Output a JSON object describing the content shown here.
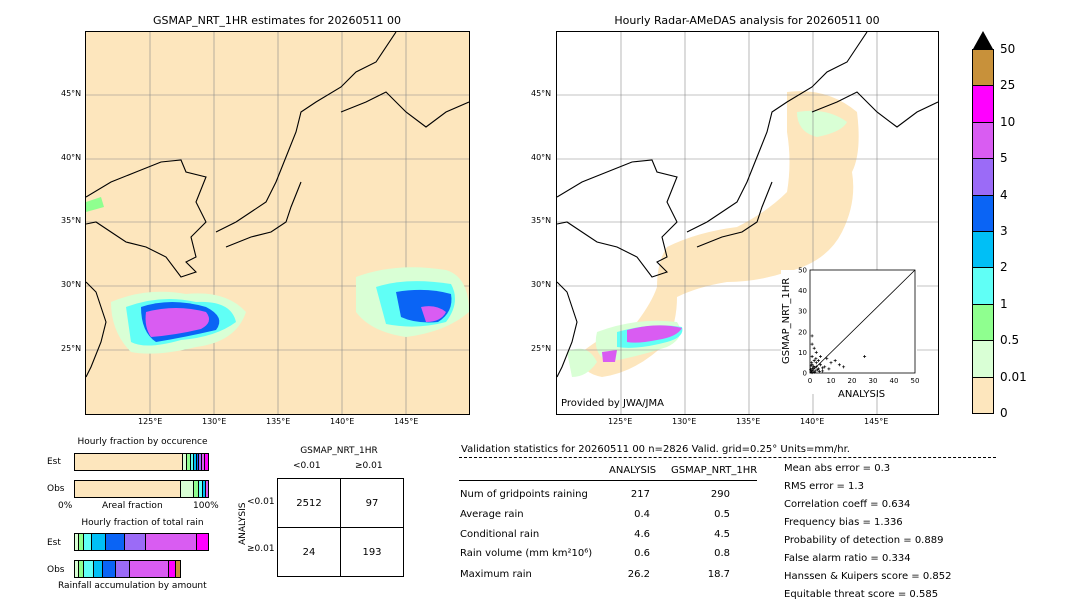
{
  "left_title": "GSMAP_NRT_1HR estimates for 20260511 00",
  "right_title": "Hourly Radar-AMeDAS analysis for 20260511 00",
  "lat_labels": [
    "45°N",
    "40°N",
    "35°N",
    "30°N",
    "25°N"
  ],
  "lon_labels": [
    "125°E",
    "130°E",
    "135°E",
    "140°E",
    "145°E"
  ],
  "provided_by": "Provided by JWA/JMA",
  "colorbar": {
    "labels": [
      "50",
      "25",
      "10",
      "5",
      "4",
      "3",
      "2",
      "1",
      "0.5",
      "0.01",
      "0"
    ],
    "colors": [
      "#c8913a",
      "#ff00ff",
      "#d95cf2",
      "#9b6bf7",
      "#0a64f5",
      "#00bff6",
      "#60fff6",
      "#8fff8f",
      "#d9ffd5",
      "#fde6bd"
    ]
  },
  "scatter": {
    "ylabel": "GSMAP_NRT_1HR",
    "xlabel": "ANALYSIS",
    "ticks": [
      "0",
      "10",
      "20",
      "30",
      "40",
      "50"
    ]
  },
  "fraction": {
    "occurrence_title": "Hourly fraction by occurence",
    "total_title": "Hourly fraction of total rain",
    "est": "Est",
    "obs": "Obs",
    "axis_left": "0%",
    "axis_mid": "Areal fraction",
    "axis_right": "100%",
    "footer": "Rainfall accumulation by amount"
  },
  "contingency": {
    "title": "GSMAP_NRT_1HR",
    "col_lt": "<0.01",
    "col_ge": "≥0.01",
    "row_axis": "ANALYSIS",
    "row_lt": "<0.01",
    "row_ge": "≥0.01",
    "cells": [
      "2512",
      "97",
      "24",
      "193"
    ]
  },
  "validation": {
    "header": "Validation statistics for 20260511 00  n=2826 Valid. grid=0.25° Units=mm/hr.",
    "col_analysis": "ANALYSIS",
    "col_gsmap": "GSMAP_NRT_1HR",
    "rows": [
      {
        "label": "Num of gridpoints raining",
        "analysis": "217",
        "gsmap": "290"
      },
      {
        "label": "Average rain",
        "analysis": "0.4",
        "gsmap": "0.5"
      },
      {
        "label": "Conditional rain",
        "analysis": "4.6",
        "gsmap": "4.5"
      },
      {
        "label": "Rain volume (mm km²10⁶)",
        "analysis": "0.6",
        "gsmap": "0.8"
      },
      {
        "label": "Maximum rain",
        "analysis": "26.2",
        "gsmap": "18.7"
      }
    ],
    "scores": [
      "Mean abs error =    0.3",
      "RMS error =    1.3",
      "Correlation coeff =  0.634",
      "Frequency bias =  1.336",
      "Probability of detection =  0.889",
      "False alarm ratio =  0.334",
      "Hanssen & Kuipers score =  0.852",
      "Equitable threat score =  0.585"
    ]
  },
  "chart_data": {
    "type": "scatter",
    "xlabel": "ANALYSIS",
    "ylabel": "GSMAP_NRT_1HR",
    "xlim": [
      0,
      50
    ],
    "ylim": [
      0,
      50
    ],
    "points": [
      [
        0.5,
        0.5
      ],
      [
        1,
        0.2
      ],
      [
        1.5,
        1
      ],
      [
        2,
        2.5
      ],
      [
        0.3,
        1.8
      ],
      [
        2.5,
        1
      ],
      [
        3,
        3
      ],
      [
        1,
        4
      ],
      [
        0.5,
        3.5
      ],
      [
        4,
        2
      ],
      [
        2,
        6
      ],
      [
        1,
        8
      ],
      [
        3,
        5
      ],
      [
        5,
        4
      ],
      [
        6,
        1
      ],
      [
        4,
        6
      ],
      [
        2,
        12
      ],
      [
        1,
        14
      ],
      [
        3,
        10
      ],
      [
        5,
        8
      ],
      [
        7,
        3
      ],
      [
        8,
        7
      ],
      [
        9,
        2
      ],
      [
        10,
        5
      ],
      [
        12,
        6
      ],
      [
        14,
        4
      ],
      [
        16,
        3
      ],
      [
        26,
        8
      ],
      [
        1,
        18
      ],
      [
        0.5,
        1.2
      ],
      [
        1.2,
        2.2
      ],
      [
        2.2,
        0.4
      ],
      [
        3.5,
        1.5
      ],
      [
        0.8,
        5
      ],
      [
        1.8,
        3.2
      ],
      [
        4.5,
        0.8
      ],
      [
        6,
        2.5
      ],
      [
        2.8,
        7
      ]
    ]
  }
}
